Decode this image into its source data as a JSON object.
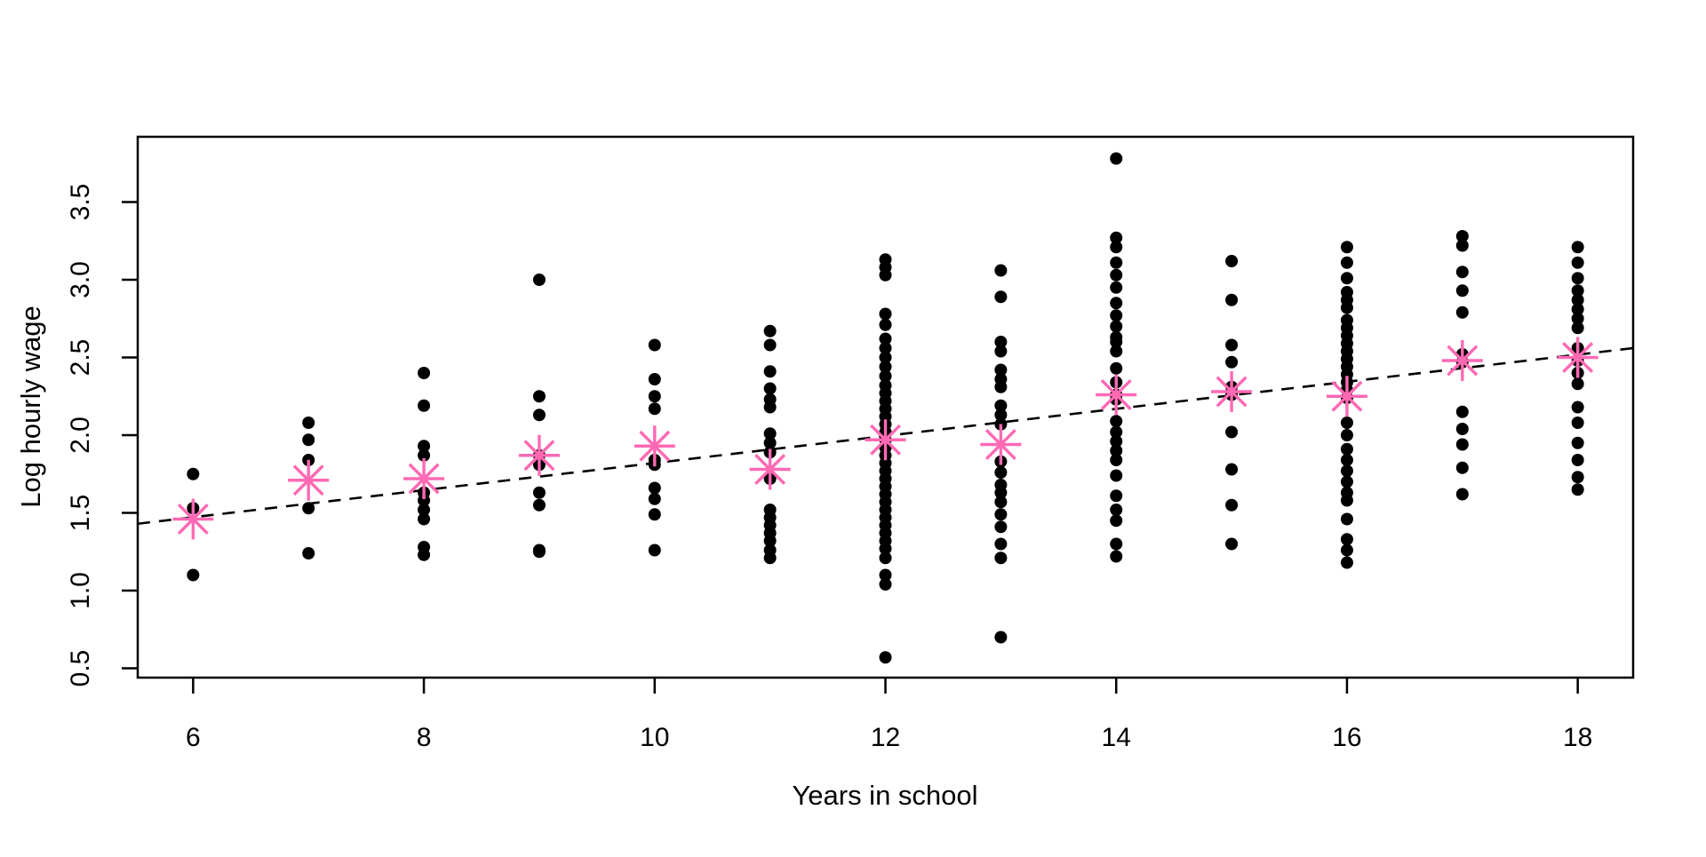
{
  "figure": {
    "background": "#ffffff",
    "point_color": "#000000",
    "mean_marker_color": "#FF69B4",
    "line_color": "#000000",
    "axis_color": "#000000"
  },
  "chart_data": {
    "type": "scatter",
    "title": "",
    "xlabel": "Years in school",
    "ylabel": "Log hourly wage",
    "xlim": [
      5.52,
      18.48
    ],
    "ylim": [
      0.44,
      3.92
    ],
    "x_ticks": [
      6,
      8,
      10,
      12,
      14,
      16,
      18
    ],
    "y_ticks": [
      0.5,
      1.0,
      1.5,
      2.0,
      2.5,
      3.0,
      3.5
    ],
    "grid": false,
    "legend": "none",
    "points": [
      {
        "x": 6,
        "y": [
          1.75,
          1.53,
          1.1
        ]
      },
      {
        "x": 7,
        "y": [
          2.08,
          1.97,
          1.84,
          1.53,
          1.24
        ]
      },
      {
        "x": 8,
        "y": [
          2.4,
          2.19,
          1.93,
          1.87,
          1.63,
          1.58,
          1.52,
          1.46,
          1.28,
          1.23
        ]
      },
      {
        "x": 9,
        "y": [
          3.0,
          2.25,
          2.13,
          1.87,
          1.81,
          1.63,
          1.55,
          1.26,
          1.25
        ]
      },
      {
        "x": 10,
        "y": [
          2.58,
          2.36,
          2.25,
          2.17,
          1.84,
          1.81,
          1.66,
          1.59,
          1.49,
          1.26
        ]
      },
      {
        "x": 11,
        "y": [
          2.67,
          2.58,
          2.41,
          2.3,
          2.23,
          2.18,
          2.01,
          1.95,
          1.89,
          1.72,
          1.52,
          1.47,
          1.42,
          1.37,
          1.32,
          1.26,
          1.21
        ]
      },
      {
        "x": 12,
        "y": [
          3.13,
          3.08,
          3.03,
          2.78,
          2.71,
          2.62,
          2.56,
          2.5,
          2.44,
          2.38,
          2.32,
          2.27,
          2.22,
          2.17,
          2.12,
          2.07,
          2.02,
          1.97,
          1.92,
          1.87,
          1.82,
          1.77,
          1.72,
          1.67,
          1.62,
          1.57,
          1.52,
          1.47,
          1.42,
          1.37,
          1.32,
          1.27,
          1.21,
          1.1,
          1.04,
          0.57
        ]
      },
      {
        "x": 13,
        "y": [
          3.06,
          2.89,
          2.6,
          2.54,
          2.42,
          2.36,
          2.31,
          2.19,
          2.13,
          2.07,
          1.83,
          1.76,
          1.68,
          1.63,
          1.57,
          1.49,
          1.41,
          1.3,
          1.21,
          0.7
        ]
      },
      {
        "x": 14,
        "y": [
          3.78,
          3.27,
          3.21,
          3.11,
          3.03,
          2.95,
          2.85,
          2.77,
          2.7,
          2.63,
          2.6,
          2.54,
          2.43,
          2.34,
          2.26,
          2.23,
          2.09,
          2.02,
          1.96,
          1.9,
          1.84,
          1.74,
          1.61,
          1.52,
          1.45,
          1.3,
          1.22
        ]
      },
      {
        "x": 15,
        "y": [
          3.12,
          2.87,
          2.58,
          2.47,
          2.31,
          2.26,
          2.02,
          1.78,
          1.55,
          1.3
        ]
      },
      {
        "x": 16,
        "y": [
          3.21,
          3.11,
          3.01,
          2.92,
          2.87,
          2.82,
          2.74,
          2.69,
          2.64,
          2.59,
          2.54,
          2.49,
          2.44,
          2.39,
          2.34,
          2.29,
          2.24,
          2.08,
          2.0,
          1.91,
          1.84,
          1.77,
          1.7,
          1.63,
          1.58,
          1.46,
          1.33,
          1.26,
          1.18
        ]
      },
      {
        "x": 17,
        "y": [
          3.28,
          3.22,
          3.05,
          2.93,
          2.79,
          2.52,
          2.47,
          2.15,
          2.04,
          1.94,
          1.79,
          1.62
        ]
      },
      {
        "x": 18,
        "y": [
          3.21,
          3.11,
          3.01,
          2.93,
          2.87,
          2.81,
          2.75,
          2.69,
          2.56,
          2.48,
          2.4,
          2.33,
          2.18,
          2.08,
          1.95,
          1.84,
          1.73,
          1.65
        ]
      }
    ],
    "group_means": {
      "marker": "asterisk",
      "x": [
        6,
        7,
        8,
        9,
        10,
        11,
        12,
        13,
        14,
        15,
        16,
        17,
        18
      ],
      "y": [
        1.46,
        1.71,
        1.72,
        1.87,
        1.93,
        1.78,
        1.97,
        1.94,
        2.26,
        2.28,
        2.25,
        2.48,
        2.5
      ]
    },
    "fit_line": {
      "style": "dashed",
      "x1": 5.52,
      "y1": 1.43,
      "x2": 18.48,
      "y2": 2.56
    }
  }
}
